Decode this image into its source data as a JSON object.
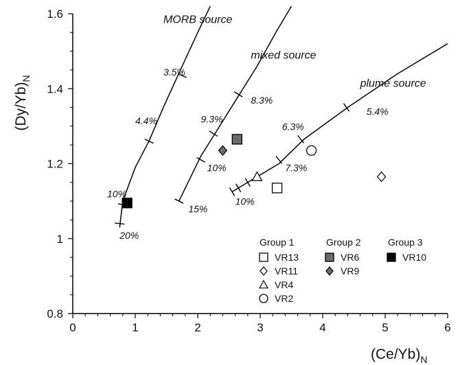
{
  "chart_data": {
    "type": "scatter",
    "xlabel": "(Ce/Yb)",
    "xlabel_sub": "N",
    "ylabel": "(Dy/Yb)",
    "ylabel_sub": "N",
    "xlim": [
      0,
      6
    ],
    "ylim": [
      0.8,
      1.6
    ],
    "x_ticks": [
      "0",
      "1",
      "2",
      "3",
      "4",
      "5",
      "6"
    ],
    "y_ticks": [
      "0.8",
      "1",
      "1.2",
      "1.4",
      "1.6"
    ],
    "x_tick_values": [
      0,
      1,
      2,
      3,
      4,
      5,
      6
    ],
    "y_tick_values": [
      0.8,
      1.0,
      1.2,
      1.4,
      1.6
    ],
    "curves": [
      {
        "name": "MORB source",
        "points": [
          [
            0.75,
            1.03
          ],
          [
            0.8,
            1.1
          ],
          [
            1.0,
            1.19
          ],
          [
            1.22,
            1.26
          ],
          [
            1.45,
            1.35
          ],
          [
            1.75,
            1.46
          ],
          [
            2.0,
            1.55
          ],
          [
            2.2,
            1.62
          ]
        ],
        "ticks": [
          [
            0.75,
            1.04
          ],
          [
            0.8,
            1.09
          ],
          [
            1.22,
            1.26
          ],
          [
            1.75,
            1.435
          ]
        ],
        "labels": [
          {
            "text": "3.5%",
            "x": 1.45,
            "y": 1.435
          },
          {
            "text": "4.4%",
            "x": 1.0,
            "y": 1.305
          },
          {
            "text": "10%",
            "x": 0.55,
            "y": 1.11
          },
          {
            "text": "20%",
            "x": 0.75,
            "y": 1.0
          }
        ]
      },
      {
        "name": "mixed source",
        "points": [
          [
            1.7,
            1.1
          ],
          [
            2.05,
            1.22
          ],
          [
            2.35,
            1.3
          ],
          [
            2.65,
            1.38
          ],
          [
            2.95,
            1.46
          ],
          [
            3.25,
            1.55
          ],
          [
            3.5,
            1.62
          ]
        ],
        "ticks": [
          [
            1.7,
            1.1
          ],
          [
            2.05,
            1.21
          ],
          [
            2.25,
            1.28
          ],
          [
            2.65,
            1.385
          ]
        ],
        "labels": [
          {
            "text": "8.3%",
            "x": 2.85,
            "y": 1.36
          },
          {
            "text": "9.3%",
            "x": 2.05,
            "y": 1.31
          },
          {
            "text": "10%",
            "x": 2.15,
            "y": 1.18
          },
          {
            "text": "15%",
            "x": 1.85,
            "y": 1.07
          }
        ]
      },
      {
        "name": "plume source",
        "points": [
          [
            2.55,
            1.125
          ],
          [
            3.0,
            1.17
          ],
          [
            3.3,
            1.2
          ],
          [
            3.7,
            1.265
          ],
          [
            4.4,
            1.35
          ],
          [
            5.2,
            1.44
          ],
          [
            6.0,
            1.52
          ]
        ],
        "ticks": [
          [
            2.55,
            1.125
          ],
          [
            2.65,
            1.135
          ],
          [
            2.8,
            1.15
          ],
          [
            3.3,
            1.21
          ],
          [
            3.65,
            1.265
          ],
          [
            4.38,
            1.35
          ]
        ],
        "labels": [
          {
            "text": "5.4%",
            "x": 4.7,
            "y": 1.33
          },
          {
            "text": "6.3%",
            "x": 3.35,
            "y": 1.29
          },
          {
            "text": "7.3%",
            "x": 3.4,
            "y": 1.18
          },
          {
            "text": "10%",
            "x": 2.6,
            "y": 1.09
          }
        ]
      }
    ],
    "curve_names_display": [
      {
        "text": "MORB source",
        "x": 1.45,
        "y": 1.575
      },
      {
        "text": "mixed source",
        "x": 2.85,
        "y": 1.48
      },
      {
        "text": "plume source",
        "x": 4.6,
        "y": 1.405
      }
    ],
    "groups": [
      {
        "name": "Group 1",
        "series": [
          {
            "name": "VR13",
            "marker": "square-open",
            "x": 3.27,
            "y": 1.135
          },
          {
            "name": "VR11",
            "marker": "diamond-open",
            "x": 4.94,
            "y": 1.165
          },
          {
            "name": "VR4",
            "marker": "triangle-open",
            "x": 2.95,
            "y": 1.165
          },
          {
            "name": "VR2",
            "marker": "circle-open",
            "x": 3.82,
            "y": 1.235
          }
        ]
      },
      {
        "name": "Group 2",
        "series": [
          {
            "name": "VR6",
            "marker": "square-gray",
            "x": 2.63,
            "y": 1.265
          },
          {
            "name": "VR9",
            "marker": "diamond-gray",
            "x": 2.4,
            "y": 1.235
          }
        ]
      },
      {
        "name": "Group 3",
        "series": [
          {
            "name": "VR10",
            "marker": "square-black",
            "x": 0.87,
            "y": 1.095
          }
        ]
      }
    ],
    "grid": false,
    "legend_position": "bottom-right",
    "colors": {
      "black": "#000000",
      "gray": "#6b6b6b",
      "open_fill": "#ffffff"
    }
  }
}
